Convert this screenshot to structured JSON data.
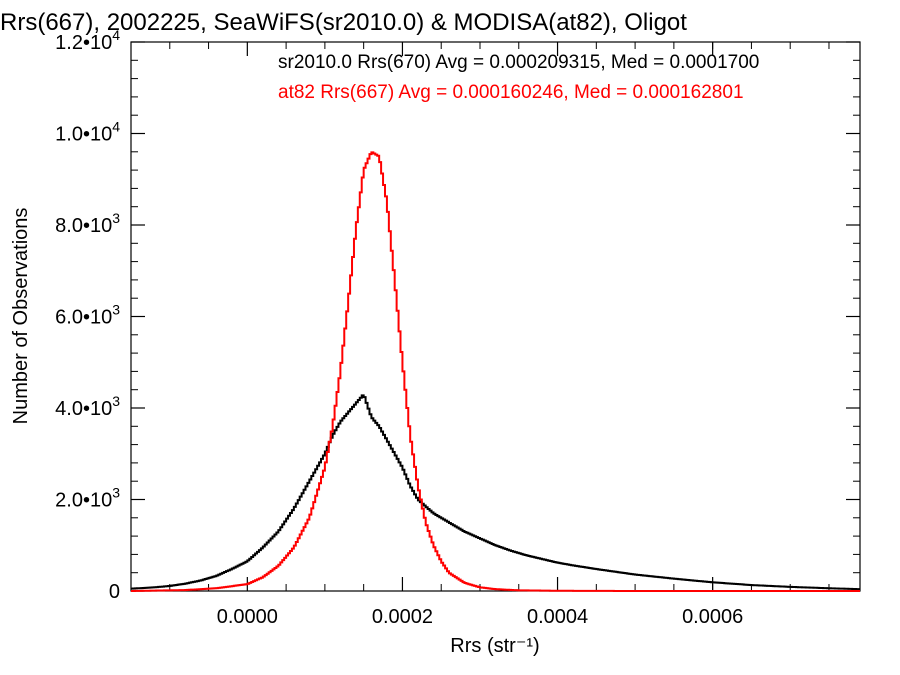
{
  "chart_data": {
    "type": "line",
    "title": "Rrs(667), 2002225, SeaWiFS(sr2010.0) & MODISA(at82), Oligot",
    "xlabel": "Rrs (str⁻¹)",
    "ylabel": "Number of Observations",
    "xlim": [
      -0.00015,
      0.00079
    ],
    "ylim": [
      0,
      12000
    ],
    "x_ticks": [
      {
        "value": 0.0,
        "label": "0.0000"
      },
      {
        "value": 0.0002,
        "label": "0.0002"
      },
      {
        "value": 0.0004,
        "label": "0.0004"
      },
      {
        "value": 0.0006,
        "label": "0.0006"
      }
    ],
    "y_ticks": [
      {
        "value": 0,
        "mantissa": "0",
        "exponent": ""
      },
      {
        "value": 2000,
        "mantissa": "2.0•10",
        "exponent": "3"
      },
      {
        "value": 4000,
        "mantissa": "4.0•10",
        "exponent": "3"
      },
      {
        "value": 6000,
        "mantissa": "6.0•10",
        "exponent": "3"
      },
      {
        "value": 8000,
        "mantissa": "8.0•10",
        "exponent": "3"
      },
      {
        "value": 10000,
        "mantissa": "1.0•10",
        "exponent": "4"
      },
      {
        "value": 12000,
        "mantissa": "1.2•10",
        "exponent": "4"
      }
    ],
    "grid": false,
    "legend_position": "top-right",
    "series": [
      {
        "name": "sr2010.0 Rrs(670) Avg = 0.000209315, Med = 0.0001700",
        "color": "#000000",
        "x": [
          -0.00015,
          -0.00012,
          -0.0001,
          -8e-05,
          -6e-05,
          -4e-05,
          -2e-05,
          0.0,
          2e-05,
          4e-05,
          6e-05,
          8e-05,
          0.0001,
          0.00011,
          0.00012,
          0.00013,
          0.00014,
          0.00015,
          0.00016,
          0.00017,
          0.00018,
          0.00019,
          0.0002,
          0.00021,
          0.00022,
          0.00024,
          0.00026,
          0.00028,
          0.0003,
          0.00032,
          0.00034,
          0.00036,
          0.00038,
          0.0004,
          0.00042,
          0.00045,
          0.0005,
          0.00055,
          0.0006,
          0.00065,
          0.0007,
          0.00075,
          0.00079
        ],
        "y": [
          50,
          80,
          110,
          160,
          230,
          330,
          480,
          650,
          950,
          1300,
          1800,
          2400,
          3000,
          3400,
          3700,
          3900,
          4100,
          4300,
          3800,
          3600,
          3300,
          3000,
          2700,
          2300,
          2000,
          1700,
          1500,
          1300,
          1150,
          1000,
          880,
          780,
          700,
          620,
          560,
          480,
          360,
          270,
          190,
          130,
          90,
          60,
          40
        ]
      },
      {
        "name": "at82 Rrs(667) Avg = 0.000160246, Med = 0.000162801",
        "color": "#ff0000",
        "x": [
          -0.00015,
          -8e-05,
          -4e-05,
          0.0,
          2e-05,
          4e-05,
          6e-05,
          8e-05,
          0.0001,
          0.00011,
          0.00012,
          0.00013,
          0.00014,
          0.00015,
          0.00016,
          0.00017,
          0.00018,
          0.00019,
          0.0002,
          0.00021,
          0.00022,
          0.00023,
          0.00024,
          0.00025,
          0.00026,
          0.00028,
          0.0003,
          0.00032,
          0.00035,
          0.0004,
          0.0005,
          0.00079
        ],
        "y": [
          0,
          20,
          60,
          150,
          300,
          550,
          950,
          1600,
          2700,
          3600,
          4800,
          6300,
          7900,
          9200,
          9600,
          9500,
          8500,
          6800,
          5000,
          3400,
          2300,
          1500,
          1000,
          650,
          400,
          180,
          80,
          40,
          15,
          5,
          0,
          0
        ]
      }
    ]
  }
}
